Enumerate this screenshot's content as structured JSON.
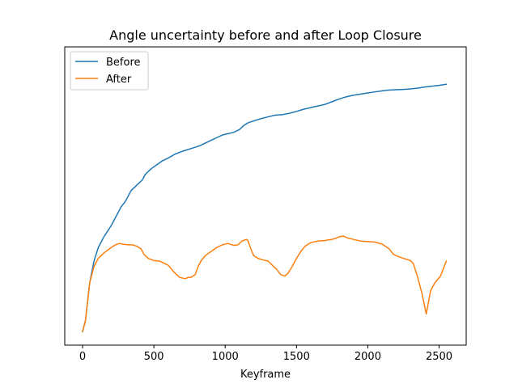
{
  "chart_data": {
    "type": "line",
    "title": "Angle uncertainty before and after Loop Closure",
    "xlabel": "Keyframe",
    "ylabel": "",
    "xlim": [
      -125,
      2690
    ],
    "ylim": [
      -0.05,
      1.05
    ],
    "xticks": [
      0,
      500,
      1000,
      1500,
      2000,
      2500
    ],
    "yticks_shown": false,
    "legend": {
      "position": "top-left"
    },
    "series": [
      {
        "name": "Before",
        "color": "#1f77b4",
        "x": [
          0,
          20,
          50,
          80,
          110,
          150,
          200,
          240,
          270,
          300,
          340,
          380,
          420,
          440,
          480,
          520,
          560,
          600,
          650,
          700,
          760,
          820,
          860,
          900,
          940,
          980,
          1020,
          1060,
          1100,
          1130,
          1160,
          1200,
          1250,
          1300,
          1350,
          1400,
          1450,
          1500,
          1550,
          1600,
          1650,
          1700,
          1750,
          1800,
          1850,
          1900,
          1950,
          2000,
          2050,
          2100,
          2150,
          2200,
          2250,
          2300,
          2350,
          2400,
          2450,
          2500,
          2550
        ],
        "y": [
          0.0,
          0.04,
          0.18,
          0.26,
          0.31,
          0.35,
          0.39,
          0.43,
          0.46,
          0.48,
          0.52,
          0.54,
          0.56,
          0.58,
          0.6,
          0.615,
          0.63,
          0.64,
          0.655,
          0.665,
          0.675,
          0.685,
          0.695,
          0.705,
          0.715,
          0.725,
          0.73,
          0.735,
          0.745,
          0.76,
          0.77,
          0.777,
          0.785,
          0.792,
          0.798,
          0.8,
          0.805,
          0.812,
          0.82,
          0.826,
          0.832,
          0.838,
          0.848,
          0.858,
          0.866,
          0.872,
          0.876,
          0.88,
          0.884,
          0.888,
          0.891,
          0.892,
          0.893,
          0.895,
          0.898,
          0.902,
          0.905,
          0.908,
          0.912
        ]
      },
      {
        "name": "After",
        "color": "#ff7f0e",
        "x": [
          0,
          20,
          50,
          80,
          110,
          150,
          200,
          230,
          260,
          290,
          320,
          350,
          380,
          410,
          430,
          460,
          500,
          540,
          560,
          600,
          640,
          680,
          720,
          740,
          760,
          790,
          810,
          830,
          860,
          900,
          940,
          980,
          1020,
          1060,
          1090,
          1120,
          1150,
          1160,
          1180,
          1200,
          1230,
          1260,
          1300,
          1330,
          1360,
          1390,
          1420,
          1440,
          1470,
          1500,
          1530,
          1560,
          1600,
          1650,
          1700,
          1750,
          1780,
          1800,
          1830,
          1860,
          1900,
          1950,
          2000,
          2050,
          2100,
          2150,
          2180,
          2200,
          2250,
          2300,
          2320,
          2350,
          2380,
          2410,
          2440,
          2470,
          2510,
          2550
        ],
        "y": [
          0.0,
          0.04,
          0.18,
          0.24,
          0.27,
          0.29,
          0.31,
          0.32,
          0.325,
          0.322,
          0.32,
          0.32,
          0.315,
          0.305,
          0.285,
          0.27,
          0.262,
          0.26,
          0.255,
          0.245,
          0.22,
          0.2,
          0.195,
          0.2,
          0.2,
          0.21,
          0.24,
          0.26,
          0.28,
          0.295,
          0.31,
          0.32,
          0.325,
          0.318,
          0.32,
          0.335,
          0.34,
          0.335,
          0.305,
          0.28,
          0.27,
          0.265,
          0.26,
          0.245,
          0.23,
          0.21,
          0.205,
          0.215,
          0.24,
          0.27,
          0.295,
          0.315,
          0.328,
          0.334,
          0.336,
          0.34,
          0.345,
          0.35,
          0.352,
          0.345,
          0.34,
          0.334,
          0.332,
          0.33,
          0.323,
          0.305,
          0.285,
          0.28,
          0.27,
          0.262,
          0.25,
          0.2,
          0.14,
          0.065,
          0.15,
          0.18,
          0.205,
          0.26
        ]
      }
    ]
  }
}
